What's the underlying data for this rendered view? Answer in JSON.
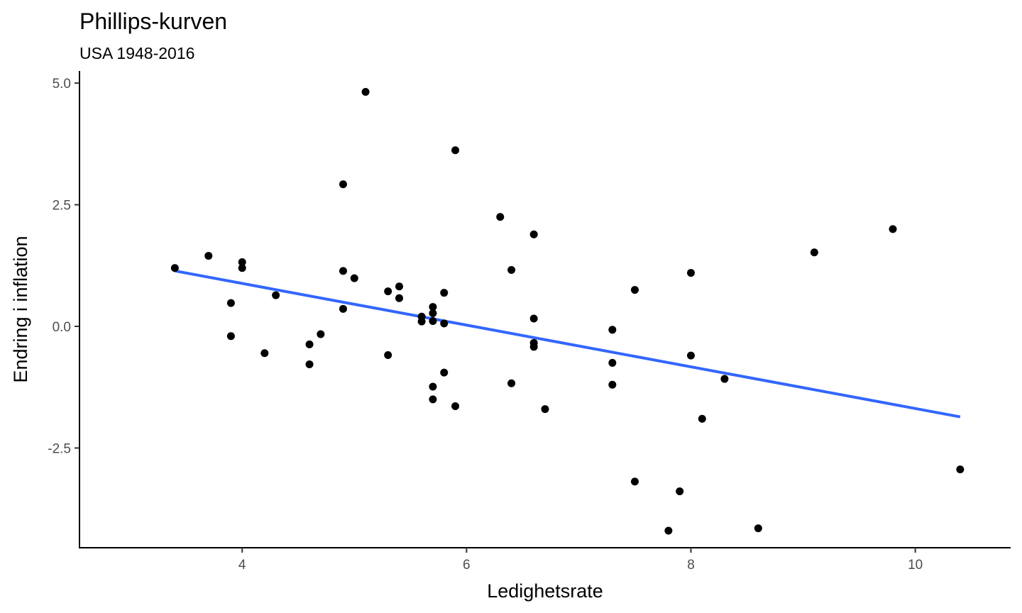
{
  "chart_data": {
    "type": "scatter",
    "title": "Phillips-kurven",
    "subtitle": "USA 1948-2016",
    "xlabel": "Ledighetsrate",
    "ylabel": "Endring i inflation",
    "xlim": [
      2.55,
      10.85
    ],
    "ylim": [
      -4.55,
      5.25
    ],
    "x_ticks": [
      {
        "value": 4,
        "label": "4"
      },
      {
        "value": 6,
        "label": "6"
      },
      {
        "value": 8,
        "label": "8"
      },
      {
        "value": 10,
        "label": "10"
      }
    ],
    "y_ticks": [
      {
        "value": 5.0,
        "label": "5.0"
      },
      {
        "value": 2.5,
        "label": "2.5"
      },
      {
        "value": 0.0,
        "label": "0.0"
      },
      {
        "value": -2.5,
        "label": "-2.5"
      }
    ],
    "grid": false,
    "points": [
      {
        "x": 3.4,
        "y": 1.2
      },
      {
        "x": 3.7,
        "y": 1.45
      },
      {
        "x": 3.9,
        "y": 0.48
      },
      {
        "x": 3.9,
        "y": -0.2
      },
      {
        "x": 4.0,
        "y": 1.32
      },
      {
        "x": 4.0,
        "y": 1.2
      },
      {
        "x": 4.2,
        "y": -0.55
      },
      {
        "x": 4.3,
        "y": 0.64
      },
      {
        "x": 4.6,
        "y": -0.37
      },
      {
        "x": 4.6,
        "y": -0.78
      },
      {
        "x": 4.7,
        "y": -0.16
      },
      {
        "x": 4.9,
        "y": 2.92
      },
      {
        "x": 4.9,
        "y": 1.14
      },
      {
        "x": 4.9,
        "y": 0.36
      },
      {
        "x": 5.0,
        "y": 0.99
      },
      {
        "x": 5.1,
        "y": 4.82
      },
      {
        "x": 5.3,
        "y": 0.72
      },
      {
        "x": 5.3,
        "y": -0.59
      },
      {
        "x": 5.4,
        "y": 0.82
      },
      {
        "x": 5.4,
        "y": 0.58
      },
      {
        "x": 5.6,
        "y": 0.2
      },
      {
        "x": 5.6,
        "y": 0.1
      },
      {
        "x": 5.7,
        "y": 0.4
      },
      {
        "x": 5.7,
        "y": 0.27
      },
      {
        "x": 5.7,
        "y": 0.11
      },
      {
        "x": 5.7,
        "y": -1.24
      },
      {
        "x": 5.7,
        "y": -1.5
      },
      {
        "x": 5.8,
        "y": 0.69
      },
      {
        "x": 5.8,
        "y": 0.06
      },
      {
        "x": 5.8,
        "y": -0.95
      },
      {
        "x": 5.9,
        "y": 3.62
      },
      {
        "x": 5.9,
        "y": -1.64
      },
      {
        "x": 6.3,
        "y": 2.25
      },
      {
        "x": 6.4,
        "y": 1.16
      },
      {
        "x": 6.4,
        "y": -1.17
      },
      {
        "x": 6.6,
        "y": 1.89
      },
      {
        "x": 6.6,
        "y": 0.16
      },
      {
        "x": 6.6,
        "y": -0.34
      },
      {
        "x": 6.6,
        "y": -0.42
      },
      {
        "x": 6.7,
        "y": -1.7
      },
      {
        "x": 7.3,
        "y": -0.07
      },
      {
        "x": 7.3,
        "y": -0.75
      },
      {
        "x": 7.3,
        "y": -1.2
      },
      {
        "x": 7.5,
        "y": 0.75
      },
      {
        "x": 7.5,
        "y": -3.19
      },
      {
        "x": 7.8,
        "y": -4.2
      },
      {
        "x": 7.9,
        "y": -3.39
      },
      {
        "x": 8.0,
        "y": 1.1
      },
      {
        "x": 8.0,
        "y": -0.6
      },
      {
        "x": 8.1,
        "y": -1.9
      },
      {
        "x": 8.3,
        "y": -1.08
      },
      {
        "x": 8.6,
        "y": -4.15
      },
      {
        "x": 9.1,
        "y": 1.52
      },
      {
        "x": 9.8,
        "y": 2.0
      },
      {
        "x": 10.4,
        "y": -2.94
      }
    ],
    "trendline": {
      "type": "linear",
      "color": "#3366ff",
      "x": [
        3.4,
        10.4
      ],
      "y": [
        1.14,
        -1.86
      ]
    },
    "point_color": "#000000"
  }
}
